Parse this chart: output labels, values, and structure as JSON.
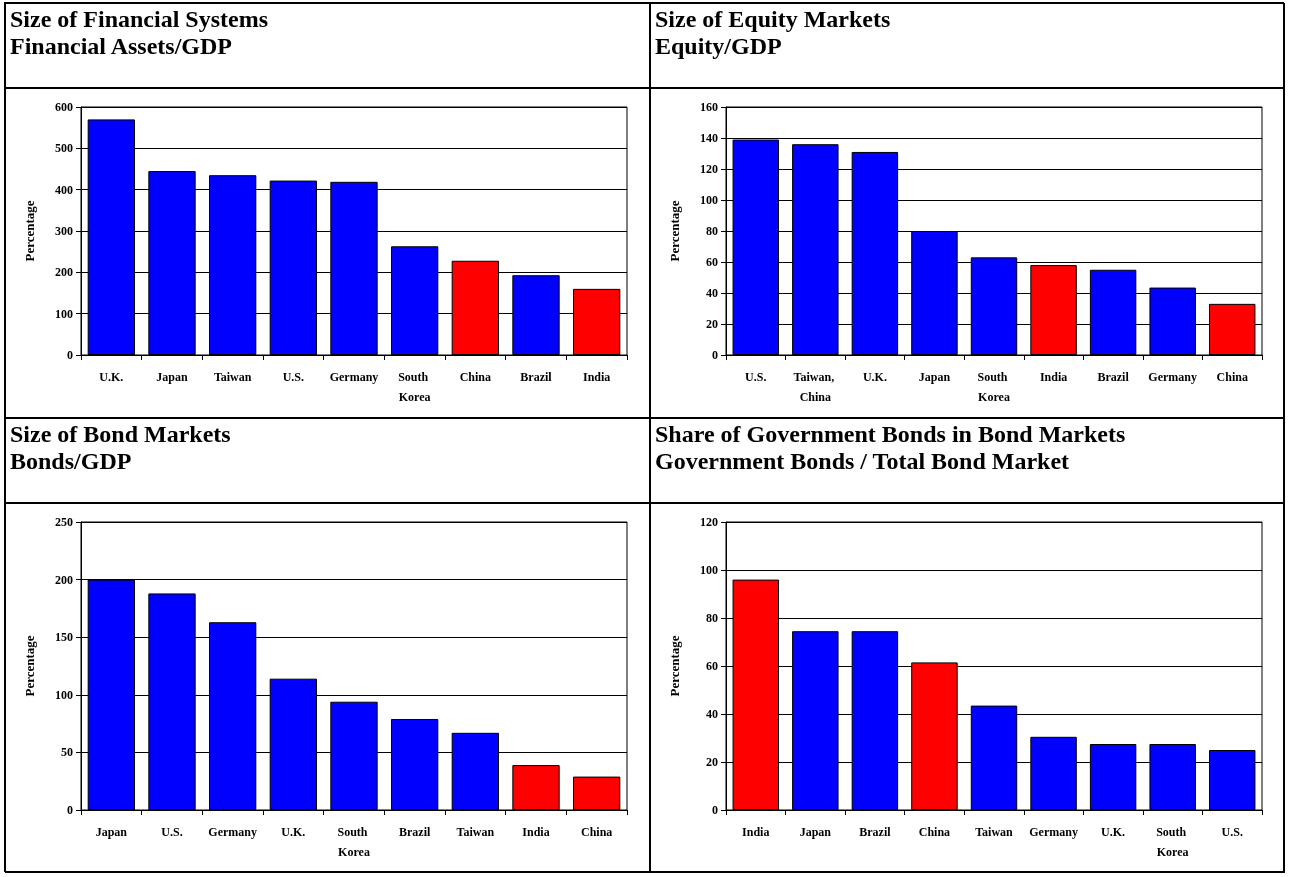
{
  "chart_data": [
    {
      "type": "bar",
      "title": "Size of Financial Systems",
      "subtitle": "Financial Assets/GDP",
      "ylabel": "Percentage",
      "categories": [
        "U.K.",
        "Japan",
        "Taiwan",
        "U.S.",
        "Germany",
        "South Korea",
        "China",
        "Brazil",
        "India"
      ],
      "values": [
        570,
        445,
        435,
        422,
        419,
        263,
        228,
        193,
        160
      ],
      "colors": [
        "#0000ff",
        "#0000ff",
        "#0000ff",
        "#0000ff",
        "#0000ff",
        "#0000ff",
        "#ff0000",
        "#0000ff",
        "#ff0000"
      ],
      "ylim": [
        0,
        600
      ],
      "yticks": [
        0,
        100,
        200,
        300,
        400,
        500,
        600
      ],
      "grid": "y"
    },
    {
      "type": "bar",
      "title": "Size of Equity Markets",
      "subtitle": "Equity/GDP",
      "ylabel": "Percentage",
      "categories": [
        "U.S.",
        "Taiwan, China",
        "U.K.",
        "Japan",
        "South Korea",
        "India",
        "Brazil",
        "Germany",
        "China"
      ],
      "values": [
        139,
        136,
        131,
        80,
        63,
        58,
        55,
        43.5,
        33
      ],
      "colors": [
        "#0000ff",
        "#0000ff",
        "#0000ff",
        "#0000ff",
        "#0000ff",
        "#ff0000",
        "#0000ff",
        "#0000ff",
        "#ff0000"
      ],
      "ylim": [
        0,
        160
      ],
      "yticks": [
        0,
        20,
        40,
        60,
        80,
        100,
        120,
        140,
        160
      ],
      "grid": "y"
    },
    {
      "type": "bar",
      "title": "Size of Bond Markets",
      "subtitle": "Bonds/GDP",
      "ylabel": "Percentage",
      "categories": [
        "Japan",
        "U.S.",
        "Germany",
        "U.K.",
        "South Korea",
        "Brazil",
        "Taiwan",
        "India",
        "China"
      ],
      "values": [
        200,
        188,
        163,
        114,
        94,
        79,
        67,
        39,
        29
      ],
      "colors": [
        "#0000ff",
        "#0000ff",
        "#0000ff",
        "#0000ff",
        "#0000ff",
        "#0000ff",
        "#0000ff",
        "#ff0000",
        "#ff0000"
      ],
      "ylim": [
        0,
        250
      ],
      "yticks": [
        0,
        50,
        100,
        150,
        200,
        250
      ],
      "grid": "y"
    },
    {
      "type": "bar",
      "title": "Share of Government Bonds in Bond Markets",
      "subtitle": "Government Bonds / Total Bond Market",
      "ylabel": "Percentage",
      "categories": [
        "India",
        "Japan",
        "Brazil",
        "China",
        "Taiwan",
        "Germany",
        "U.K.",
        "South Korea",
        "U.S."
      ],
      "values": [
        96,
        74.5,
        74.5,
        61.5,
        43.5,
        30.5,
        27.5,
        27.5,
        25
      ],
      "colors": [
        "#ff0000",
        "#0000ff",
        "#0000ff",
        "#ff0000",
        "#0000ff",
        "#0000ff",
        "#0000ff",
        "#0000ff",
        "#0000ff"
      ],
      "ylim": [
        0,
        120
      ],
      "yticks": [
        0,
        20,
        40,
        60,
        80,
        100,
        120
      ],
      "grid": "y"
    }
  ]
}
